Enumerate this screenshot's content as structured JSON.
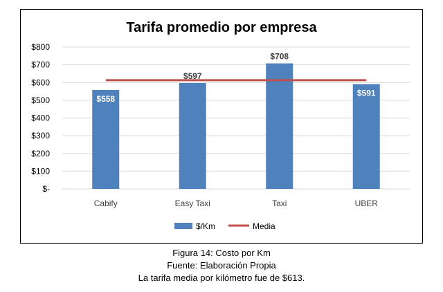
{
  "chart_data": {
    "type": "bar",
    "title": "Tarifa promedio por empresa",
    "categories": [
      "Cabify",
      "Easy Taxi",
      "Taxi",
      "UBER"
    ],
    "series": [
      {
        "name": "$/Km",
        "type": "bar",
        "values": [
          558,
          597,
          708,
          591
        ],
        "color": "#4F81BD",
        "labels": [
          "$558",
          "$597",
          "$708",
          "$591"
        ]
      },
      {
        "name": "Media",
        "type": "line",
        "values": [
          613,
          613,
          613,
          613
        ],
        "color": "#C0504D"
      }
    ],
    "ylim": [
      0,
      800
    ],
    "yticks": [
      0,
      100,
      200,
      300,
      400,
      500,
      600,
      700,
      800
    ],
    "ytick_labels": [
      "$-",
      "$100",
      "$200",
      "$300",
      "$400",
      "$500",
      "$600",
      "$700",
      "$800"
    ],
    "grid": true,
    "legend_position": "bottom",
    "xlabel": "",
    "ylabel": ""
  },
  "captions": {
    "figure": "Figura 14: Costo por Km",
    "source": "Fuente: Elaboración Propia",
    "note": "La tarifa media por kilómetro fue de $613."
  }
}
